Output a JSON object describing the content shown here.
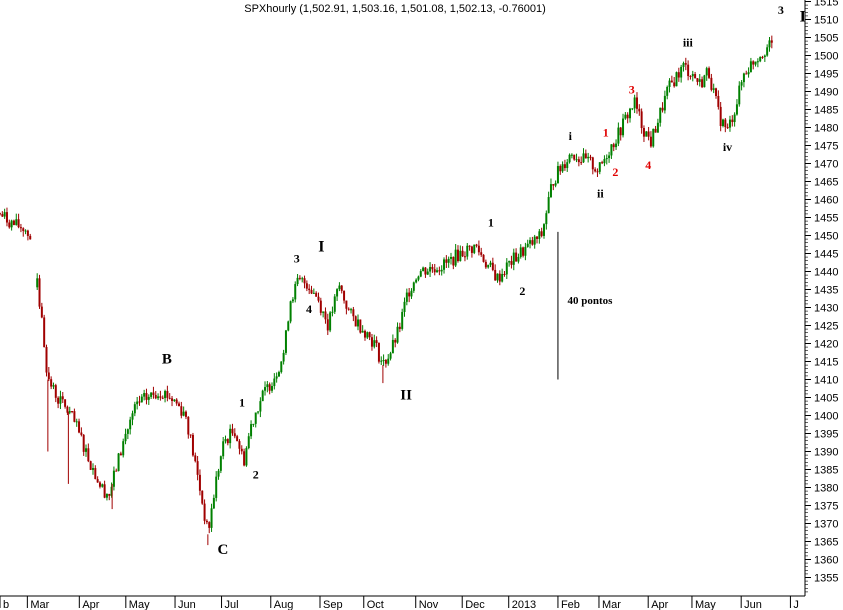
{
  "chart_data": {
    "type": "candlestick",
    "title": "SPXhourly (1,502.91, 1,503.16, 1,501.08, 1,502.13, -0.76001)",
    "xlabel": "",
    "ylabel": "",
    "ylim": [
      1350,
      1518
    ],
    "y_ticks": [
      1355,
      1360,
      1365,
      1370,
      1375,
      1380,
      1385,
      1390,
      1395,
      1400,
      1405,
      1410,
      1415,
      1420,
      1425,
      1430,
      1435,
      1440,
      1445,
      1450,
      1455,
      1460,
      1465,
      1470,
      1475,
      1480,
      1485,
      1490,
      1495,
      1500,
      1505,
      1510,
      1515
    ],
    "x_range": [
      0,
      29.4
    ],
    "x_ticks": [
      {
        "label": "b",
        "x": 0.0
      },
      {
        "label": "Mar",
        "x": 1.0
      },
      {
        "label": "Apr",
        "x": 2.9
      },
      {
        "label": "May",
        "x": 4.6
      },
      {
        "label": "Jun",
        "x": 6.4
      },
      {
        "label": "Jul",
        "x": 8.1
      },
      {
        "label": "Aug",
        "x": 9.9
      },
      {
        "label": "Sep",
        "x": 11.7
      },
      {
        "label": "Oct",
        "x": 13.3
      },
      {
        "label": "Nov",
        "x": 15.2
      },
      {
        "label": "Dec",
        "x": 16.9
      },
      {
        "label": "2013",
        "x": 18.6
      },
      {
        "label": "Feb",
        "x": 20.4
      },
      {
        "label": "Mar",
        "x": 21.9
      },
      {
        "label": "Apr",
        "x": 23.7
      },
      {
        "label": "May",
        "x": 25.3
      },
      {
        "label": "Jun",
        "x": 27.1
      },
      {
        "label": "J",
        "x": 28.9
      }
    ],
    "price_path": [
      [
        0.0,
        1456
      ],
      [
        0.5,
        1453
      ],
      [
        0.9,
        1452
      ],
      [
        1.15,
        1449
      ],
      [
        1.35,
        1437
      ],
      [
        1.55,
        1425
      ],
      [
        1.75,
        1410
      ],
      [
        2.1,
        1405
      ],
      [
        2.6,
        1400
      ],
      [
        3.0,
        1393
      ],
      [
        3.3,
        1387
      ],
      [
        3.7,
        1380
      ],
      [
        4.0,
        1378
      ],
      [
        4.3,
        1387
      ],
      [
        4.6,
        1395
      ],
      [
        5.0,
        1403
      ],
      [
        5.4,
        1405
      ],
      [
        5.9,
        1407
      ],
      [
        6.4,
        1404
      ],
      [
        6.8,
        1400
      ],
      [
        7.0,
        1392
      ],
      [
        7.3,
        1380
      ],
      [
        7.6,
        1367
      ],
      [
        7.9,
        1382
      ],
      [
        8.2,
        1393
      ],
      [
        8.6,
        1396
      ],
      [
        8.9,
        1387
      ],
      [
        9.2,
        1398
      ],
      [
        9.5,
        1404
      ],
      [
        9.8,
        1408
      ],
      [
        10.1,
        1412
      ],
      [
        10.4,
        1418
      ],
      [
        10.6,
        1432
      ],
      [
        10.9,
        1437
      ],
      [
        11.2,
        1437
      ],
      [
        11.6,
        1433
      ],
      [
        12.0,
        1425
      ],
      [
        12.4,
        1436
      ],
      [
        12.8,
        1428
      ],
      [
        13.3,
        1424
      ],
      [
        13.7,
        1420
      ],
      [
        14.0,
        1414
      ],
      [
        14.3,
        1418
      ],
      [
        14.6,
        1424
      ],
      [
        14.9,
        1434
      ],
      [
        15.3,
        1440
      ],
      [
        15.8,
        1441
      ],
      [
        16.3,
        1442
      ],
      [
        16.8,
        1445
      ],
      [
        17.4,
        1447
      ],
      [
        17.8,
        1442
      ],
      [
        18.2,
        1438
      ],
      [
        18.6,
        1442
      ],
      [
        19.0,
        1445
      ],
      [
        19.5,
        1448
      ],
      [
        19.8,
        1450
      ],
      [
        20.2,
        1465
      ],
      [
        20.6,
        1470
      ],
      [
        20.9,
        1473
      ],
      [
        21.3,
        1471
      ],
      [
        21.6,
        1470
      ],
      [
        21.9,
        1468
      ],
      [
        22.2,
        1473
      ],
      [
        22.6,
        1478
      ],
      [
        22.9,
        1483
      ],
      [
        23.2,
        1487
      ],
      [
        23.5,
        1480
      ],
      [
        23.8,
        1476
      ],
      [
        24.1,
        1483
      ],
      [
        24.4,
        1490
      ],
      [
        24.7,
        1494
      ],
      [
        25.0,
        1497
      ],
      [
        25.3,
        1495
      ],
      [
        25.6,
        1492
      ],
      [
        25.9,
        1496
      ],
      [
        26.3,
        1483
      ],
      [
        26.6,
        1479
      ],
      [
        26.9,
        1486
      ],
      [
        27.2,
        1495
      ],
      [
        27.6,
        1499
      ],
      [
        28.0,
        1502
      ],
      [
        28.3,
        1503
      ]
    ],
    "annotations": [
      {
        "text": "B",
        "x": 6.1,
        "y": 1414.5,
        "color": "black",
        "size": 15
      },
      {
        "text": "C",
        "x": 8.15,
        "y": 1361.5,
        "color": "black",
        "size": 15
      },
      {
        "text": "1",
        "x": 8.85,
        "y": 1402.5,
        "color": "black",
        "size": 12
      },
      {
        "text": "2",
        "x": 9.35,
        "y": 1382.5,
        "color": "black",
        "size": 12
      },
      {
        "text": "3",
        "x": 10.85,
        "y": 1442.5,
        "color": "black",
        "size": 12
      },
      {
        "text": "4",
        "x": 11.3,
        "y": 1428.5,
        "color": "black",
        "size": 12
      },
      {
        "text": "I",
        "x": 11.75,
        "y": 1445.5,
        "color": "black",
        "size": 16
      },
      {
        "text": "II",
        "x": 14.85,
        "y": 1404.5,
        "color": "black",
        "size": 15
      },
      {
        "text": "1",
        "x": 17.95,
        "y": 1452.5,
        "color": "black",
        "size": 12
      },
      {
        "text": "2",
        "x": 19.1,
        "y": 1433.5,
        "color": "black",
        "size": 12
      },
      {
        "text": "40 pontos",
        "x": 20.75,
        "y": 1431,
        "color": "black",
        "size": 11
      },
      {
        "text": "i",
        "x": 20.85,
        "y": 1476.5,
        "color": "black",
        "size": 12
      },
      {
        "text": "ii",
        "x": 21.95,
        "y": 1460.5,
        "color": "black",
        "size": 12
      },
      {
        "text": "1",
        "x": 22.15,
        "y": 1477.5,
        "color": "red",
        "size": 12
      },
      {
        "text": "2",
        "x": 22.5,
        "y": 1466.5,
        "color": "red",
        "size": 12
      },
      {
        "text": "3",
        "x": 23.1,
        "y": 1489.5,
        "color": "red",
        "size": 12
      },
      {
        "text": "4",
        "x": 23.7,
        "y": 1468.5,
        "color": "red",
        "size": 12
      },
      {
        "text": "iii",
        "x": 25.15,
        "y": 1502.5,
        "color": "black",
        "size": 12
      },
      {
        "text": "iv",
        "x": 26.6,
        "y": 1473.5,
        "color": "black",
        "size": 12
      },
      {
        "text": "3",
        "x": 28.55,
        "y": 1511.5,
        "color": "black",
        "size": 12
      },
      {
        "text": "I",
        "x": 29.35,
        "y": 1509.5,
        "color": "black",
        "size": 16
      }
    ],
    "measure_line": {
      "x": 20.4,
      "y_from": 1410,
      "y_to": 1451
    }
  }
}
